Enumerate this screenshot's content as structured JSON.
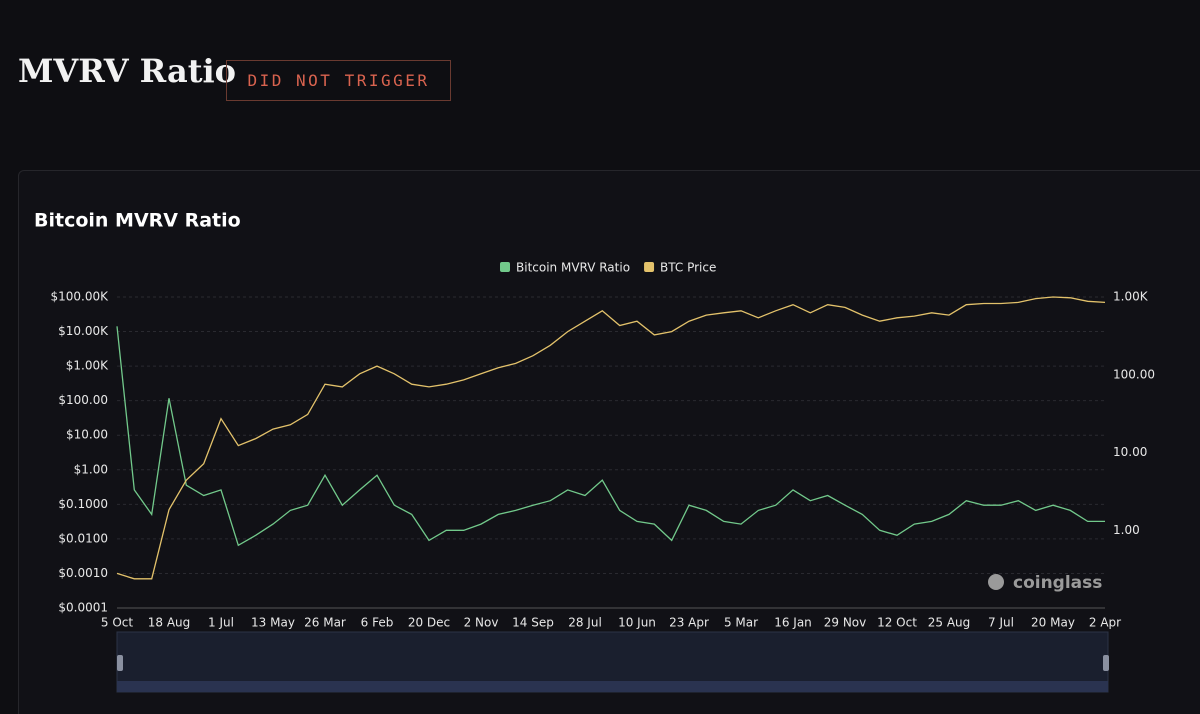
{
  "header": {
    "title": "MVRV Ratio",
    "status": "DID NOT TRIGGER"
  },
  "chart_data": {
    "type": "line",
    "title": "Bitcoin MVRV Ratio",
    "watermark": "coinglass",
    "legend": "top",
    "grid": true,
    "log_scale": true,
    "categories": [
      "5 Oct",
      null,
      null,
      "18 Aug",
      null,
      null,
      "1 Jul",
      null,
      null,
      "13 May",
      null,
      null,
      "26 Mar",
      null,
      null,
      "6 Feb",
      null,
      null,
      "20 Dec",
      null,
      null,
      "2 Nov",
      null,
      null,
      "14 Sep",
      null,
      null,
      "28 Jul",
      null,
      null,
      "10 Jun",
      null,
      null,
      "23 Apr",
      null,
      null,
      "5 Mar",
      null,
      null,
      "16 Jan",
      null,
      null,
      "29 Nov",
      null,
      null,
      "12 Oct",
      null,
      null,
      "25 Aug",
      null,
      null,
      "7 Jul",
      null,
      null,
      "20 May",
      null,
      null,
      "2 Apr"
    ],
    "ylim": [
      0.0001,
      100000
    ],
    "yticks": [
      {
        "value": 100000,
        "label": "$100.00K"
      },
      {
        "value": 10000,
        "label": "$10.00K"
      },
      {
        "value": 1000,
        "label": "$1.00K"
      },
      {
        "value": 100,
        "label": "$100.00"
      },
      {
        "value": 10,
        "label": "$10.00"
      },
      {
        "value": 1,
        "label": "$1.00"
      },
      {
        "value": 0.1,
        "label": "$0.1000"
      },
      {
        "value": 0.01,
        "label": "$0.0100"
      },
      {
        "value": 0.001,
        "label": "$0.0010"
      },
      {
        "value": 0.0001,
        "label": "$0.0001"
      }
    ],
    "y2lim": [
      0.1,
      1000
    ],
    "y2ticks": [
      {
        "value": 1000,
        "label": "1.00K"
      },
      {
        "value": 100,
        "label": "100.00"
      },
      {
        "value": 10,
        "label": "10.00"
      },
      {
        "value": 1,
        "label": "1.00"
      }
    ],
    "series": [
      {
        "name": "Bitcoin MVRV Ratio",
        "color": "#72c98b",
        "axis": "y2",
        "values": [
          420,
          3.3,
          1.6,
          50,
          3.8,
          2.8,
          3.3,
          0.64,
          0.86,
          1.2,
          1.8,
          2.1,
          5.1,
          2.1,
          3.3,
          5.1,
          2.1,
          1.6,
          0.74,
          1.0,
          1.0,
          1.2,
          1.6,
          1.8,
          2.1,
          2.4,
          3.3,
          2.8,
          4.4,
          1.8,
          1.3,
          1.2,
          0.74,
          2.1,
          1.8,
          1.3,
          1.2,
          1.8,
          2.1,
          3.3,
          2.4,
          2.8,
          2.1,
          1.6,
          1.0,
          0.86,
          1.2,
          1.3,
          1.6,
          2.4,
          2.1,
          2.1,
          2.4,
          1.8,
          2.1,
          1.8,
          1.3,
          1.3
        ]
      },
      {
        "name": "BTC Price",
        "color": "#e3c26b",
        "values": [
          0.001,
          0.0007,
          0.0007,
          0.07,
          0.5,
          1.5,
          30,
          5,
          8,
          15,
          20,
          40,
          300,
          250,
          600,
          1000,
          600,
          300,
          250,
          300,
          400,
          600,
          900,
          1200,
          2000,
          4000,
          10000,
          20000,
          40000,
          15000,
          20000,
          8000,
          10000,
          20000,
          30000,
          35000,
          40000,
          25000,
          40000,
          60000,
          35000,
          60000,
          50000,
          30000,
          20000,
          25000,
          28000,
          35000,
          30000,
          60000,
          65000,
          65000,
          70000,
          90000,
          100000,
          95000,
          75000,
          70000
        ]
      }
    ]
  }
}
